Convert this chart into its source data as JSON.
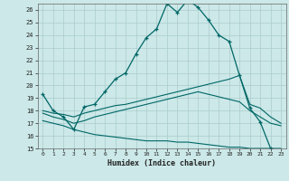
{
  "xlabel": "Humidex (Indice chaleur)",
  "bg_color": "#cce8e8",
  "grid_color": "#aacccc",
  "line_color": "#006666",
  "xlim": [
    -0.5,
    23.5
  ],
  "ylim": [
    15,
    26.5
  ],
  "xticks": [
    0,
    1,
    2,
    3,
    4,
    5,
    6,
    7,
    8,
    9,
    10,
    11,
    12,
    13,
    14,
    15,
    16,
    17,
    18,
    19,
    20,
    21,
    22,
    23
  ],
  "yticks": [
    15,
    16,
    17,
    18,
    19,
    20,
    21,
    22,
    23,
    24,
    25,
    26
  ],
  "main_x": [
    0,
    1,
    2,
    3,
    4,
    5,
    6,
    7,
    8,
    9,
    10,
    11,
    12,
    13,
    14,
    15,
    16,
    17,
    18,
    19,
    20,
    21,
    22
  ],
  "main_y": [
    19.3,
    18.0,
    17.5,
    16.5,
    18.3,
    18.5,
    19.5,
    20.5,
    21.0,
    22.5,
    23.8,
    24.5,
    26.5,
    25.8,
    26.8,
    26.2,
    25.2,
    24.0,
    23.5,
    20.8,
    18.2,
    17.1,
    15.0
  ],
  "line2_x": [
    0,
    1,
    2,
    3,
    4,
    5,
    6,
    7,
    8,
    9,
    10,
    11,
    12,
    13,
    14,
    15,
    16,
    17,
    18,
    19,
    20,
    21,
    22,
    23
  ],
  "line2_y": [
    18.0,
    17.8,
    17.7,
    17.5,
    17.8,
    18.0,
    18.2,
    18.4,
    18.5,
    18.7,
    18.9,
    19.1,
    19.3,
    19.5,
    19.7,
    19.9,
    20.1,
    20.3,
    20.5,
    20.8,
    18.5,
    18.2,
    17.5,
    17.0
  ],
  "line3_x": [
    0,
    1,
    2,
    3,
    4,
    5,
    6,
    7,
    8,
    9,
    10,
    11,
    12,
    13,
    14,
    15,
    16,
    17,
    18,
    19,
    20,
    21,
    22,
    23
  ],
  "line3_y": [
    17.8,
    17.5,
    17.3,
    17.0,
    17.2,
    17.5,
    17.7,
    17.9,
    18.1,
    18.3,
    18.5,
    18.7,
    18.9,
    19.1,
    19.3,
    19.5,
    19.3,
    19.1,
    18.9,
    18.7,
    18.0,
    17.5,
    17.0,
    16.8
  ],
  "line4_x": [
    0,
    1,
    2,
    3,
    4,
    5,
    6,
    7,
    8,
    9,
    10,
    11,
    12,
    13,
    14,
    15,
    16,
    17,
    18,
    19,
    20,
    21,
    22,
    23
  ],
  "line4_y": [
    17.2,
    17.0,
    16.8,
    16.5,
    16.3,
    16.1,
    16.0,
    15.9,
    15.8,
    15.7,
    15.6,
    15.6,
    15.6,
    15.5,
    15.5,
    15.4,
    15.3,
    15.2,
    15.1,
    15.1,
    15.0,
    15.0,
    15.0,
    15.0
  ]
}
